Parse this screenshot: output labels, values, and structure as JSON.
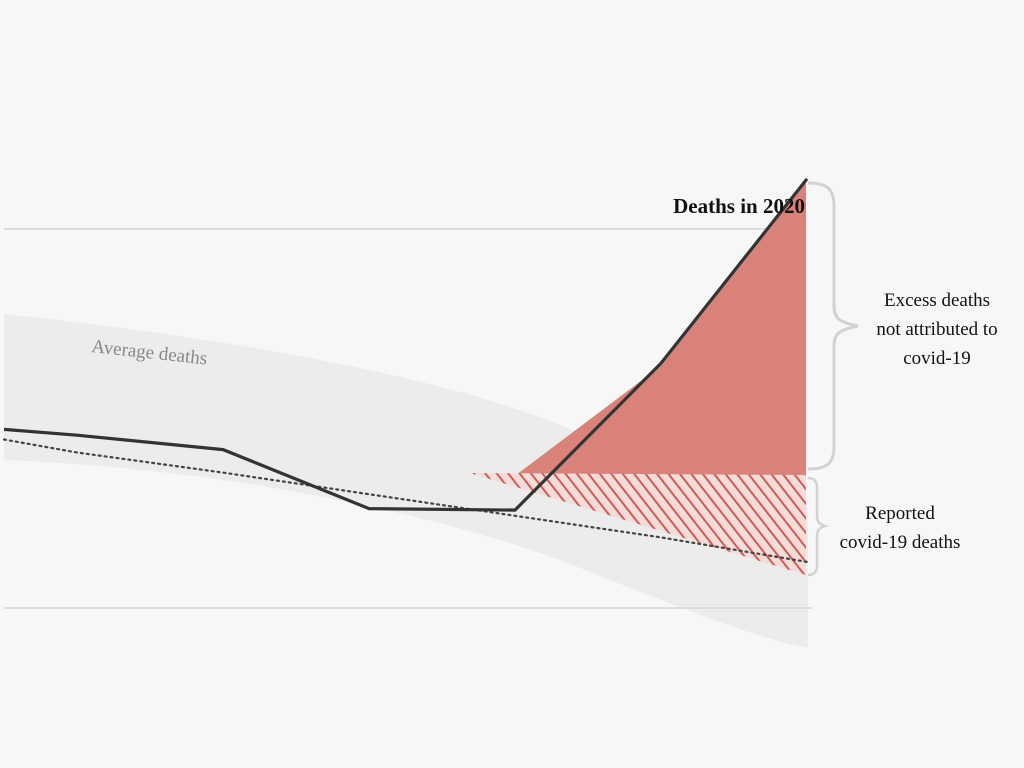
{
  "chart_data": {
    "type": "line",
    "title": "",
    "xlabel": "",
    "ylabel": "",
    "gridlines": 2,
    "x": [
      0,
      1,
      2,
      3,
      4,
      5,
      6,
      7
    ],
    "series": [
      {
        "name": "Deaths in 2020",
        "values": [
          1.24,
          1.2,
          1.1,
          0.69,
          0.68,
          1.7,
          2.98
        ],
        "x": [
          0,
          0.5,
          1.5,
          2.5,
          3.5,
          4.5,
          5.5
        ],
        "color": "#333333"
      },
      {
        "name": "Average deaths",
        "values": [
          1.17,
          1.08,
          0.94,
          0.79,
          0.64,
          0.49,
          0.32,
          0.08
        ],
        "x": [
          0,
          0.5,
          1.5,
          2.5,
          3.5,
          4.5,
          5.5,
          5.5
        ],
        "color": "#444444"
      }
    ],
    "annotations": [
      {
        "id": "excess",
        "text": "Excess deaths\nnot attributed to\ncovid-19"
      },
      {
        "id": "reported",
        "text": "Reported\ncovid-19 deaths"
      }
    ],
    "series_label": "Deaths in 2020",
    "baseline_label": "Average deaths",
    "colors": {
      "excess_fill": "#d9827a",
      "hatch": "#cf5b55",
      "band": "#eaeaea",
      "grid": "#dcdcdc",
      "brace": "#d2d2d2",
      "baseline_text": "#888888"
    }
  }
}
